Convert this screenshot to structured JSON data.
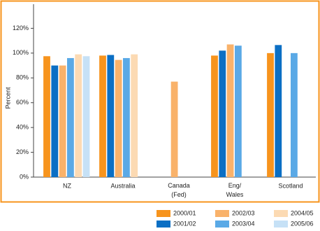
{
  "chart_data": {
    "type": "bar",
    "y_label": "Percent",
    "categories": [
      "NZ",
      "Australia",
      "Canada\n(Fed)",
      "Eng/\nWales",
      "Scotland"
    ],
    "series": [
      {
        "name": "2000/01",
        "color": "#f7941d",
        "values": [
          97.5,
          98,
          null,
          98,
          100
        ]
      },
      {
        "name": "2001/02",
        "color": "#0b6fc4",
        "values": [
          90,
          98.5,
          null,
          102,
          106.5
        ]
      },
      {
        "name": "2002/03",
        "color": "#f9b26a",
        "values": [
          90,
          94.5,
          77,
          107,
          null
        ]
      },
      {
        "name": "2003/04",
        "color": "#5aa9e6",
        "values": [
          96,
          96,
          null,
          106,
          100
        ]
      },
      {
        "name": "2004/05",
        "color": "#fcdab3",
        "values": [
          99,
          99,
          null,
          null,
          null
        ]
      },
      {
        "name": "2005/06",
        "color": "#c6e1f6",
        "values": [
          97.5,
          null,
          null,
          null,
          null
        ]
      }
    ],
    "ylim": [
      0,
      140
    ],
    "yticks": [
      {
        "value": 0,
        "label": "0%"
      },
      {
        "value": 20,
        "label": "20%"
      },
      {
        "value": 40,
        "label": "40%"
      },
      {
        "value": 60,
        "label": "60%"
      },
      {
        "value": 80,
        "label": "80%"
      },
      {
        "value": 100,
        "label": "100%"
      },
      {
        "value": 120,
        "label": "120%"
      }
    ]
  }
}
